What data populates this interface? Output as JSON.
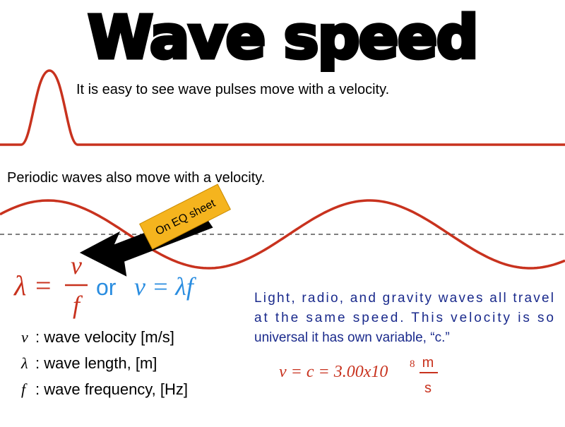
{
  "title": "Wave speed",
  "pulse_text": "It is easy to see wave pulses move with a velocity.",
  "periodic_text": "Periodic waves also move with a velocity.",
  "callout": "On EQ sheet",
  "formula": {
    "lambda": "λ",
    "equals": "=",
    "numerator": "v",
    "denominator": "f",
    "or": "or",
    "alt": "v = λf"
  },
  "definitions": [
    {
      "symbol": "v",
      "text": ": wave velocity [m/s]"
    },
    {
      "symbol": "λ",
      "text": ": wave length, [m]"
    },
    {
      "symbol": "f",
      "text": ": wave frequency, [Hz]"
    }
  ],
  "note": [
    "Light, radio, and gravity waves all travel",
    "at the same speed. This velocity is so",
    "universal it has own variable, “c.”"
  ],
  "speed_equation": {
    "expression": "v = c = 3.00x10",
    "exponent": "8",
    "unit_top": "m",
    "unit_bottom": "s"
  }
}
